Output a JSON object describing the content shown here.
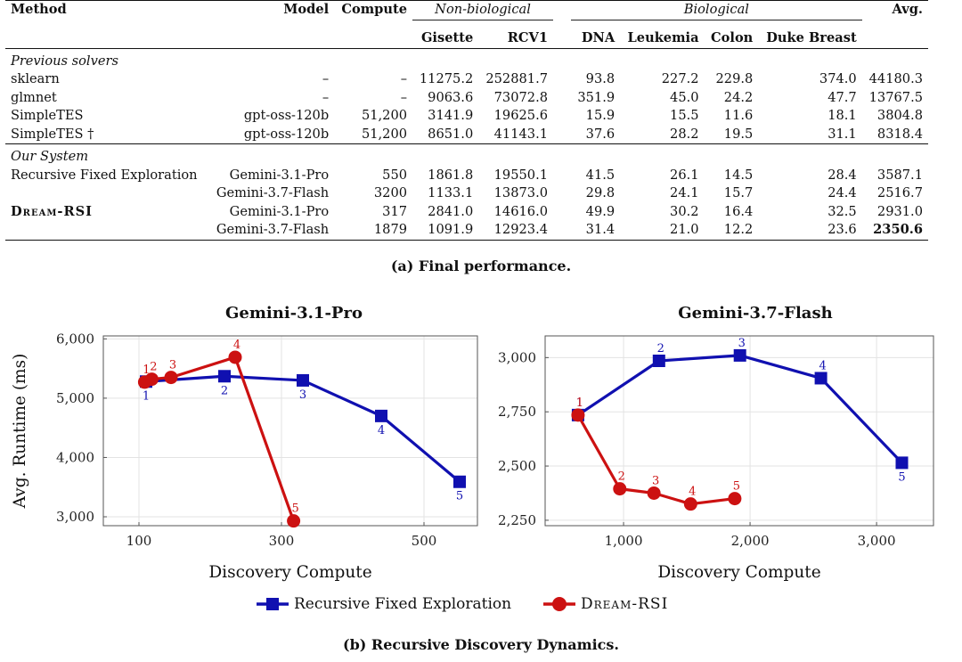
{
  "table": {
    "headers": {
      "method": "Method",
      "model": "Model",
      "compute": "Compute",
      "group_nonbio": "Non-biological",
      "group_bio": "Biological",
      "avg": "Avg.",
      "datasets": [
        "Gisette",
        "RCV1",
        "DNA",
        "Leukemia",
        "Colon",
        "Duke Breast"
      ]
    },
    "section_previous": "Previous solvers",
    "section_ours": "Our System",
    "rows_previous": [
      {
        "method": "sklearn",
        "model": "–",
        "compute": "–",
        "values": [
          "11275.2",
          "252881.7",
          "93.8",
          "227.2",
          "229.8",
          "374.0"
        ],
        "avg": "44180.3"
      },
      {
        "method": "glmnet",
        "model": "–",
        "compute": "–",
        "values": [
          "9063.6",
          "73072.8",
          "351.9",
          "45.0",
          "24.2",
          "47.7"
        ],
        "avg": "13767.5"
      },
      {
        "method": "SimpleTES",
        "model": "gpt-oss-120b",
        "compute": "51,200",
        "values": [
          "3141.9",
          "19625.6",
          "15.9",
          "15.5",
          "11.6",
          "18.1"
        ],
        "avg": "3804.8"
      },
      {
        "method": "SimpleTES †",
        "model": "gpt-oss-120b",
        "compute": "51,200",
        "values": [
          "8651.0",
          "41143.1",
          "37.6",
          "28.2",
          "19.5",
          "31.1"
        ],
        "avg": "8318.4"
      }
    ],
    "rows_ours": [
      {
        "method": "Recursive Fixed Exploration",
        "model": "Gemini-3.1-Pro",
        "compute": "550",
        "values": [
          "1861.8",
          "19550.1",
          "41.5",
          "26.1",
          "14.5",
          "28.4"
        ],
        "avg": "3587.1"
      },
      {
        "method": "",
        "model": "Gemini-3.7-Flash",
        "compute": "3200",
        "values": [
          "1133.1",
          "13873.0",
          "29.8",
          "24.1",
          "15.7",
          "24.4"
        ],
        "avg": "2516.7"
      },
      {
        "method": "Dream-RSI",
        "model": "Gemini-3.1-Pro",
        "compute": "317",
        "values": [
          "2841.0",
          "14616.0",
          "49.9",
          "30.2",
          "16.4",
          "32.5"
        ],
        "avg": "2931.0"
      },
      {
        "method": "",
        "model": "Gemini-3.7-Flash",
        "compute": "1879",
        "values": [
          "1091.9",
          "12923.4",
          "31.4",
          "21.0",
          "12.2",
          "23.6"
        ],
        "avg": "2350.6"
      }
    ],
    "caption": "(a) Final performance."
  },
  "chart_data": [
    {
      "type": "line",
      "title": "Gemini-3.1-Pro",
      "xlabel": "Discovery Compute",
      "ylabel": "Avg. Runtime (ms)",
      "xlim": [
        50,
        575
      ],
      "ylim": [
        2850,
        6050
      ],
      "xticks": [
        100,
        300,
        500
      ],
      "xtick_labels": [
        "100",
        "300",
        "500"
      ],
      "yticks": [
        3000,
        4000,
        5000,
        6000
      ],
      "ytick_labels": [
        "3,000",
        "4,000",
        "5,000",
        "6,000"
      ],
      "grid": true,
      "series": [
        {
          "name": "Recursive Fixed Exploration",
          "color": "#1010b0",
          "marker": "square",
          "x": [
            110,
            220,
            330,
            440,
            550
          ],
          "y": [
            5280,
            5370,
            5300,
            4700,
            3590
          ],
          "labels": [
            "1",
            "2",
            "3",
            "4",
            "5"
          ]
        },
        {
          "name": "Dream-RSI",
          "color": "#cc1111",
          "marker": "circle",
          "x": [
            108,
            118,
            145,
            235,
            317
          ],
          "y": [
            5270,
            5320,
            5350,
            5690,
            2930
          ],
          "labels": [
            "1",
            "2",
            "3",
            "4",
            "5"
          ]
        }
      ]
    },
    {
      "type": "line",
      "title": "Gemini-3.7-Flash",
      "xlabel": "Discovery Compute",
      "xlim": [
        380,
        3450
      ],
      "ylim": [
        2225,
        3100
      ],
      "xticks": [
        1000,
        2000,
        3000
      ],
      "xtick_labels": [
        "1,000",
        "2,000",
        "3,000"
      ],
      "yticks": [
        2250,
        2500,
        2750,
        3000
      ],
      "ytick_labels": [
        "2,250",
        "2,500",
        "2,750",
        "3,000"
      ],
      "grid": true,
      "series": [
        {
          "name": "Recursive Fixed Exploration",
          "color": "#1010b0",
          "marker": "square",
          "x": [
            640,
            1280,
            1920,
            2560,
            3200
          ],
          "y": [
            2735,
            2985,
            3010,
            2905,
            2515
          ],
          "labels": [
            "1",
            "2",
            "3",
            "4",
            "5"
          ]
        },
        {
          "name": "Dream-RSI",
          "color": "#cc1111",
          "marker": "circle",
          "x": [
            640,
            970,
            1240,
            1530,
            1879
          ],
          "y": [
            2735,
            2395,
            2375,
            2325,
            2350
          ],
          "labels": [
            "1",
            "2",
            "3",
            "4",
            "5"
          ]
        }
      ]
    }
  ],
  "legend": {
    "rfe_label": "Recursive Fixed Exploration",
    "rsi_label": "Dream-RSI",
    "rfe_color": "#1010b0",
    "rsi_color": "#cc1111"
  },
  "caption_b": "(b) Recursive Discovery Dynamics."
}
